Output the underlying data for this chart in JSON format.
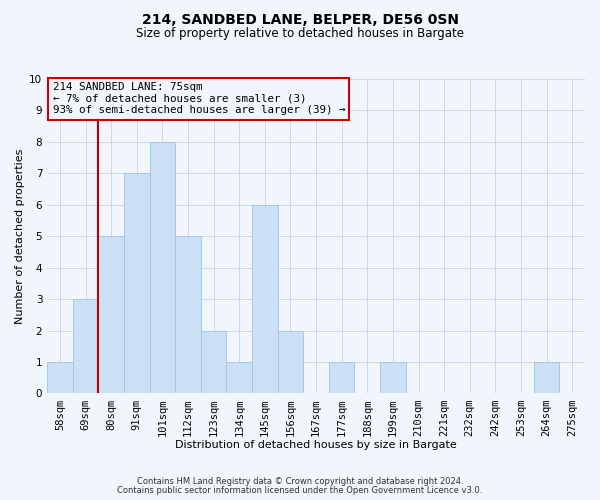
{
  "title": "214, SANDBED LANE, BELPER, DE56 0SN",
  "subtitle": "Size of property relative to detached houses in Bargate",
  "xlabel": "Distribution of detached houses by size in Bargate",
  "ylabel": "Number of detached properties",
  "categories": [
    "58sqm",
    "69sqm",
    "80sqm",
    "91sqm",
    "101sqm",
    "112sqm",
    "123sqm",
    "134sqm",
    "145sqm",
    "156sqm",
    "167sqm",
    "177sqm",
    "188sqm",
    "199sqm",
    "210sqm",
    "221sqm",
    "232sqm",
    "242sqm",
    "253sqm",
    "264sqm",
    "275sqm"
  ],
  "values": [
    1,
    3,
    5,
    7,
    8,
    5,
    2,
    1,
    6,
    2,
    0,
    1,
    0,
    1,
    0,
    0,
    0,
    0,
    0,
    1,
    0
  ],
  "bar_color": "#cce0f5",
  "bar_edgecolor": "#a8c8e8",
  "grid_color": "#ccd9e8",
  "ylim": [
    0,
    10
  ],
  "yticks": [
    0,
    1,
    2,
    3,
    4,
    5,
    6,
    7,
    8,
    9,
    10
  ],
  "vline_x_idx": 2,
  "vline_color": "#bb0000",
  "annotation_title": "214 SANDBED LANE: 75sqm",
  "annotation_line1": "← 7% of detached houses are smaller (3)",
  "annotation_line2": "93% of semi-detached houses are larger (39) →",
  "annotation_box_edgecolor": "#cc0000",
  "footnote1": "Contains HM Land Registry data © Crown copyright and database right 2024.",
  "footnote2": "Contains public sector information licensed under the Open Government Licence v3.0.",
  "background_color": "#f0f6fc",
  "title_fontsize": 10,
  "subtitle_fontsize": 8.5,
  "axis_label_fontsize": 8,
  "tick_fontsize": 7.5,
  "annotation_fontsize": 7.8,
  "footnote_fontsize": 6
}
